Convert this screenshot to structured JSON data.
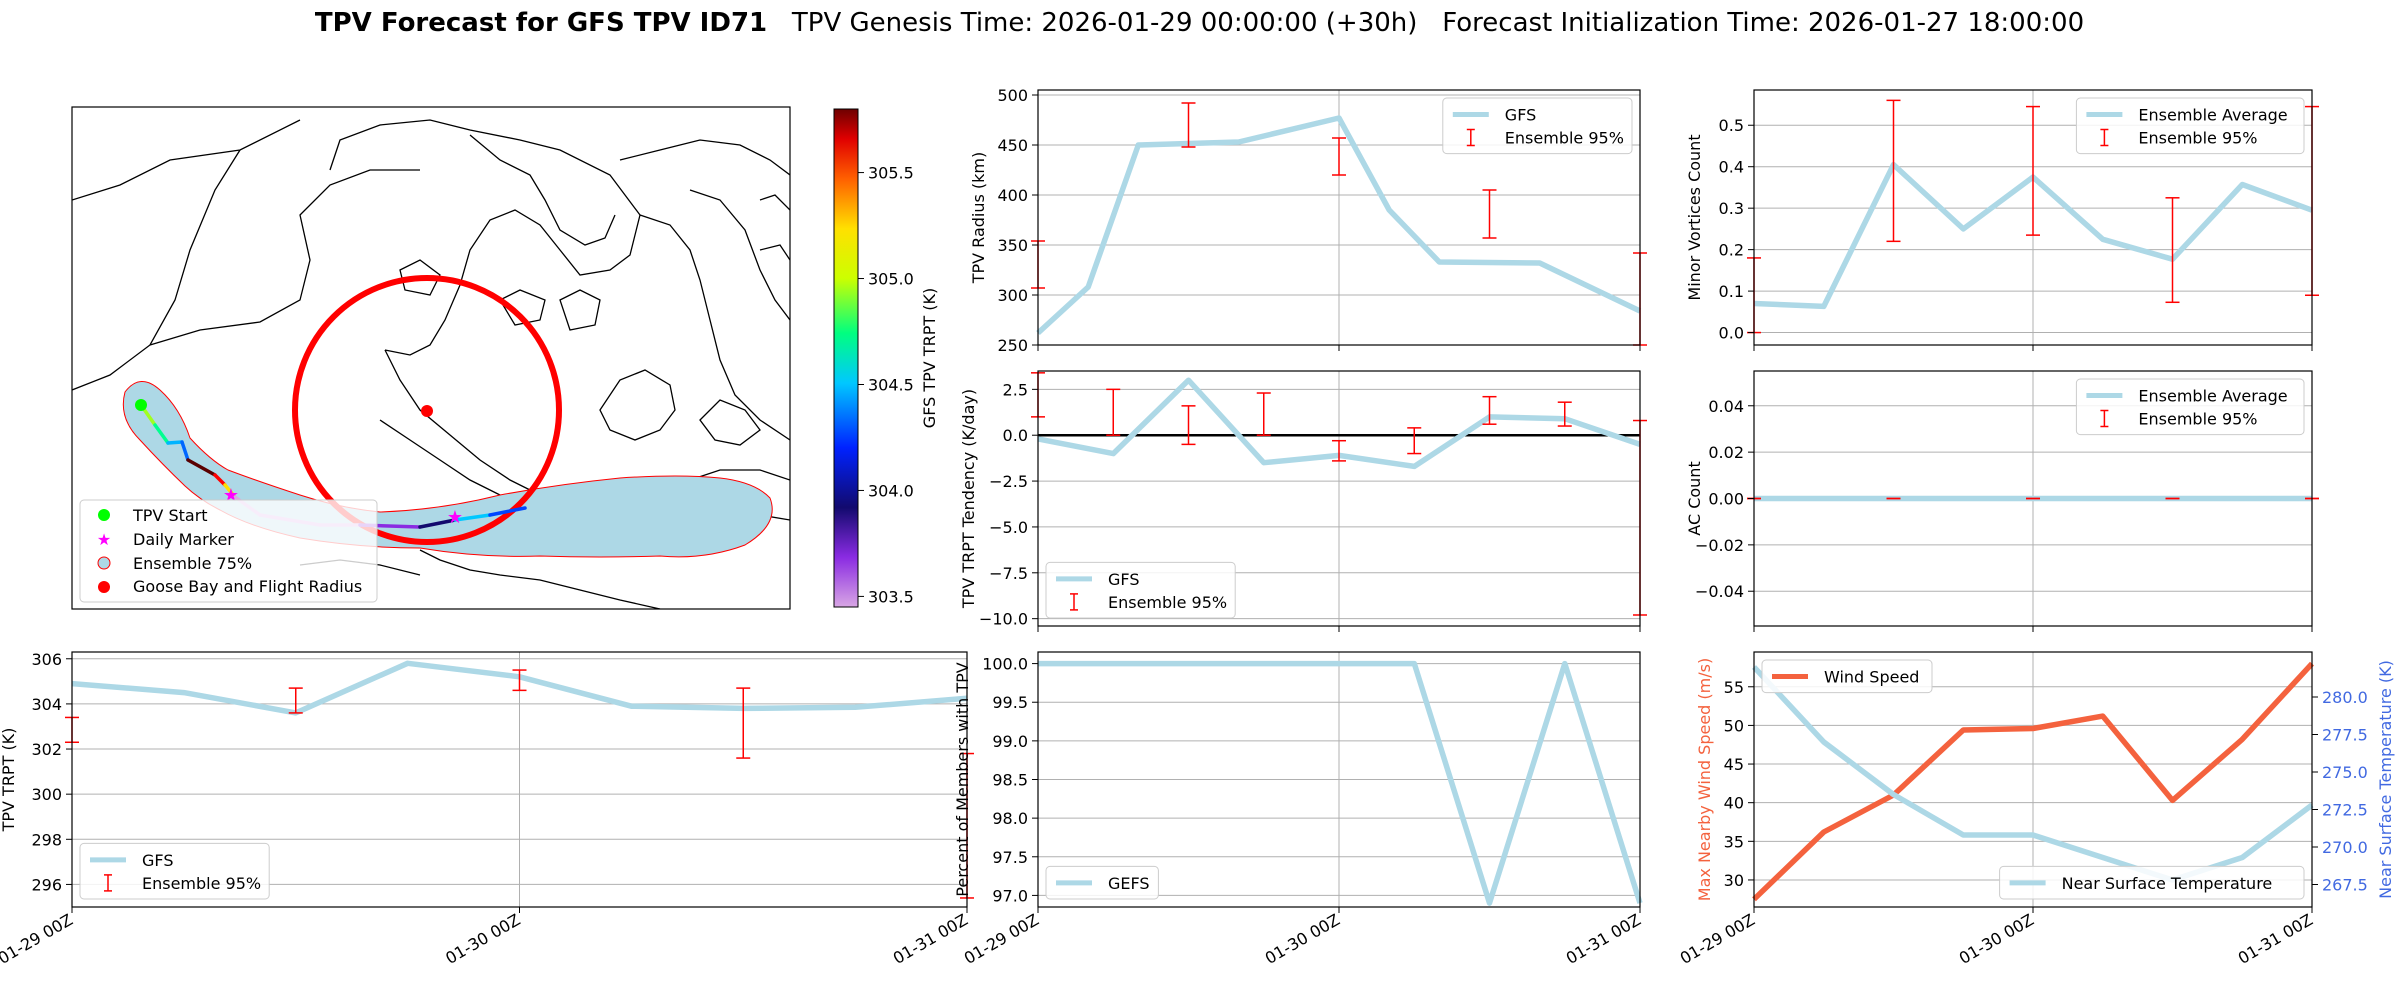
{
  "title": {
    "bold": "TPV Forecast for GFS TPV ID71",
    "genesis": "TPV Genesis Time: 2026-01-29 00:00:00 (+30h)",
    "init": "Forecast Initialization Time: 2026-01-27 18:00:00"
  },
  "colors": {
    "line": "#add8e6",
    "err": "#ff0000",
    "wind": "#f4623e",
    "temp_axis": "#4169e1",
    "ocean": "#add8e6"
  },
  "x_ticks": [
    "01-29 00Z",
    "01-30 00Z",
    "01-31 00Z"
  ],
  "map": {
    "legend": [
      "TPV Start",
      "Daily Marker",
      "Ensemble 75%",
      "Goose Bay and Flight Radius"
    ],
    "colorbar": {
      "label": "GFS TPV TRPT (K)",
      "ticks": [
        "303.5",
        "304.0",
        "304.5",
        "305.0",
        "305.5"
      ],
      "min": 303.45,
      "max": 305.8
    }
  },
  "chart_data": [
    {
      "id": "radius",
      "type": "line",
      "ylabel": "TPV Radius (km)",
      "ylim": [
        250,
        505
      ],
      "yticks": [
        250,
        300,
        350,
        400,
        450,
        500
      ],
      "tick_labels": [
        "250",
        "300",
        "350",
        "400",
        "450",
        "500"
      ],
      "legend": [
        "GFS",
        "Ensemble 95%"
      ],
      "legend_pos": "top-right",
      "x": [
        0,
        0.1667,
        0.3333,
        0.5,
        0.6667,
        0.8333,
        1,
        1.1667,
        1.3333,
        1.5,
        1.6667,
        1.8333,
        2
      ],
      "series": [
        {
          "name": "GFS",
          "values": [
            262,
            308,
            450,
            null,
            453,
            null,
            477,
            385,
            333,
            null,
            332,
            null,
            284
          ]
        }
      ],
      "errorbars": [
        {
          "x": 0,
          "lo": 307,
          "hi": 354
        },
        {
          "x": 0.5,
          "lo": 448,
          "hi": 492
        },
        {
          "x": 1,
          "lo": 420,
          "hi": 457
        },
        {
          "x": 1.5,
          "lo": 357,
          "hi": 405
        },
        {
          "x": 2,
          "lo": 250,
          "hi": 342
        }
      ]
    },
    {
      "id": "tendency",
      "type": "line",
      "ylabel": "TPV TRPT Tendency (K/day)",
      "ylim": [
        -10.4,
        3.5
      ],
      "yticks": [
        -10,
        -7.5,
        -5,
        -2.5,
        0,
        2.5
      ],
      "tick_labels": [
        "−10.0",
        "−7.5",
        "−5.0",
        "−2.5",
        "0.0",
        "2.5"
      ],
      "hline": 0,
      "legend": [
        "GFS",
        "Ensemble 95%"
      ],
      "legend_pos": "bottom-left",
      "x": [
        0,
        0.25,
        0.5,
        0.75,
        1,
        1.25,
        1.5,
        1.75,
        2
      ],
      "series": [
        {
          "name": "GFS",
          "values": [
            -0.2,
            -1.0,
            3.0,
            -1.5,
            -1.1,
            -1.7,
            1.0,
            0.9,
            -0.5
          ]
        }
      ],
      "errorbars": [
        {
          "x": 0,
          "lo": 1.0,
          "hi": 3.4
        },
        {
          "x": 0.25,
          "lo": 0.0,
          "hi": 2.5
        },
        {
          "x": 0.5,
          "lo": -0.5,
          "hi": 1.6
        },
        {
          "x": 0.75,
          "lo": 0.0,
          "hi": 2.3
        },
        {
          "x": 1,
          "lo": -1.4,
          "hi": -0.3
        },
        {
          "x": 1.25,
          "lo": -1.0,
          "hi": 0.4
        },
        {
          "x": 1.5,
          "lo": 0.6,
          "hi": 2.1
        },
        {
          "x": 1.75,
          "lo": 0.5,
          "hi": 1.8
        },
        {
          "x": 2,
          "lo": -9.8,
          "hi": 0.8
        }
      ]
    },
    {
      "id": "trpt",
      "type": "line",
      "ylabel": "TPV TRPT (K)",
      "ylim": [
        295,
        306.3
      ],
      "yticks": [
        296,
        298,
        300,
        302,
        304,
        306
      ],
      "tick_labels": [
        "296",
        "298",
        "300",
        "302",
        "304",
        "306"
      ],
      "legend": [
        "GFS",
        "Ensemble 95%"
      ],
      "legend_pos": "bottom-left",
      "x": [
        0,
        0.25,
        0.5,
        0.75,
        1,
        1.25,
        1.5,
        1.75,
        2
      ],
      "series": [
        {
          "name": "GFS",
          "values": [
            304.9,
            304.5,
            303.6,
            305.8,
            305.2,
            303.9,
            303.8,
            303.85,
            304.25
          ]
        }
      ],
      "errorbars": [
        {
          "x": 0,
          "lo": 302.3,
          "hi": 303.4
        },
        {
          "x": 0.5,
          "lo": 303.6,
          "hi": 304.7
        },
        {
          "x": 1,
          "lo": 304.6,
          "hi": 305.5
        },
        {
          "x": 1.5,
          "lo": 301.6,
          "hi": 304.7
        },
        {
          "x": 2,
          "lo": 295.4,
          "hi": 301.8
        }
      ]
    },
    {
      "id": "members",
      "type": "line",
      "ylabel": "Percent of Members with TPV",
      "ylim": [
        96.85,
        100.15
      ],
      "yticks": [
        97.0,
        97.5,
        98.0,
        98.5,
        99.0,
        99.5,
        100.0
      ],
      "tick_labels": [
        "97.0",
        "97.5",
        "98.0",
        "98.5",
        "99.0",
        "99.5",
        "100.0"
      ],
      "legend": [
        "GEFS"
      ],
      "legend_pos": "bottom-left",
      "x": [
        0,
        0.25,
        0.5,
        0.75,
        1,
        1.25,
        1.5,
        1.75,
        2
      ],
      "series": [
        {
          "name": "GEFS",
          "values": [
            100,
            100,
            100,
            100,
            100,
            100,
            96.9,
            100,
            96.9
          ]
        }
      ]
    },
    {
      "id": "minor",
      "type": "line",
      "ylabel": "Minor Vortices Count",
      "ylim": [
        -0.03,
        0.585
      ],
      "yticks": [
        0,
        0.1,
        0.2,
        0.3,
        0.4,
        0.5
      ],
      "tick_labels": [
        "0.0",
        "0.1",
        "0.2",
        "0.3",
        "0.4",
        "0.5"
      ],
      "legend": [
        "Ensemble Average",
        "Ensemble 95%"
      ],
      "legend_pos": "top-right",
      "x": [
        0,
        0.125,
        0.25,
        0.375,
        0.5,
        0.625,
        0.75,
        0.875,
        1,
        1.125,
        1.25,
        1.375,
        1.5,
        1.625,
        1.75,
        1.875,
        2
      ],
      "series": [
        {
          "name": "Ensemble Average",
          "values": [
            0.07,
            null,
            0.063,
            null,
            0.405,
            null,
            0.25,
            null,
            0.375,
            null,
            0.225,
            null,
            0.177,
            null,
            0.357,
            null,
            0.295
          ]
        }
      ],
      "errorbars": [
        {
          "x": 0,
          "lo": 0.0,
          "hi": 0.18
        },
        {
          "x": 0.5,
          "lo": 0.22,
          "hi": 0.56
        },
        {
          "x": 1,
          "lo": 0.235,
          "hi": 0.545
        },
        {
          "x": 1.5,
          "lo": 0.073,
          "hi": 0.325
        },
        {
          "x": 2,
          "lo": 0.09,
          "hi": 0.545
        }
      ]
    },
    {
      "id": "ac",
      "type": "line",
      "ylabel": "AC Count",
      "ylim": [
        -0.055,
        0.055
      ],
      "yticks": [
        -0.04,
        -0.02,
        0,
        0.02,
        0.04
      ],
      "tick_labels": [
        "−0.04",
        "−0.02",
        "0.00",
        "0.02",
        "0.04"
      ],
      "legend": [
        "Ensemble Average",
        "Ensemble 95%"
      ],
      "legend_pos": "top-right",
      "x": [
        0,
        0.5,
        1,
        1.5,
        2
      ],
      "series": [
        {
          "name": "Ensemble Average",
          "values": [
            0,
            0,
            0,
            0,
            0
          ]
        }
      ],
      "errorbars": [
        {
          "x": 0,
          "lo": 0,
          "hi": 0
        },
        {
          "x": 0.5,
          "lo": 0,
          "hi": 0
        },
        {
          "x": 1,
          "lo": 0,
          "hi": 0
        },
        {
          "x": 1.5,
          "lo": 0,
          "hi": 0
        },
        {
          "x": 2,
          "lo": 0,
          "hi": 0
        }
      ]
    },
    {
      "id": "wind",
      "type": "line",
      "ylabel": "Max Nearby Wind Speed (m/s)",
      "ylim": [
        26.5,
        59.5
      ],
      "yticks": [
        30,
        35,
        40,
        45,
        50,
        55
      ],
      "tick_labels": [
        "30",
        "35",
        "40",
        "45",
        "50",
        "55"
      ],
      "ylabel2": "Near Surface Temperature (K)",
      "ylim2": [
        266,
        283
      ],
      "yticks2": [
        267.5,
        270,
        272.5,
        275,
        277.5,
        280
      ],
      "tick_labels2": [
        "267.5",
        "270.0",
        "272.5",
        "275.0",
        "277.5",
        "280.0"
      ],
      "legend": [
        "Wind Speed"
      ],
      "legend2": [
        "Near Surface Temperature"
      ],
      "x": [
        0,
        0.25,
        0.5,
        0.75,
        1,
        1.25,
        1.5,
        1.75,
        2
      ],
      "series": [
        {
          "name": "Wind Speed",
          "axis": "left",
          "values": [
            27.5,
            36.2,
            41.0,
            49.4,
            49.6,
            51.2,
            40.3,
            48.2,
            58.0
          ]
        },
        {
          "name": "Near Surface Temperature",
          "axis": "right",
          "values": [
            282.0,
            277.0,
            273.5,
            270.8,
            270.8,
            269.3,
            267.8,
            269.3,
            272.8
          ]
        }
      ]
    }
  ]
}
